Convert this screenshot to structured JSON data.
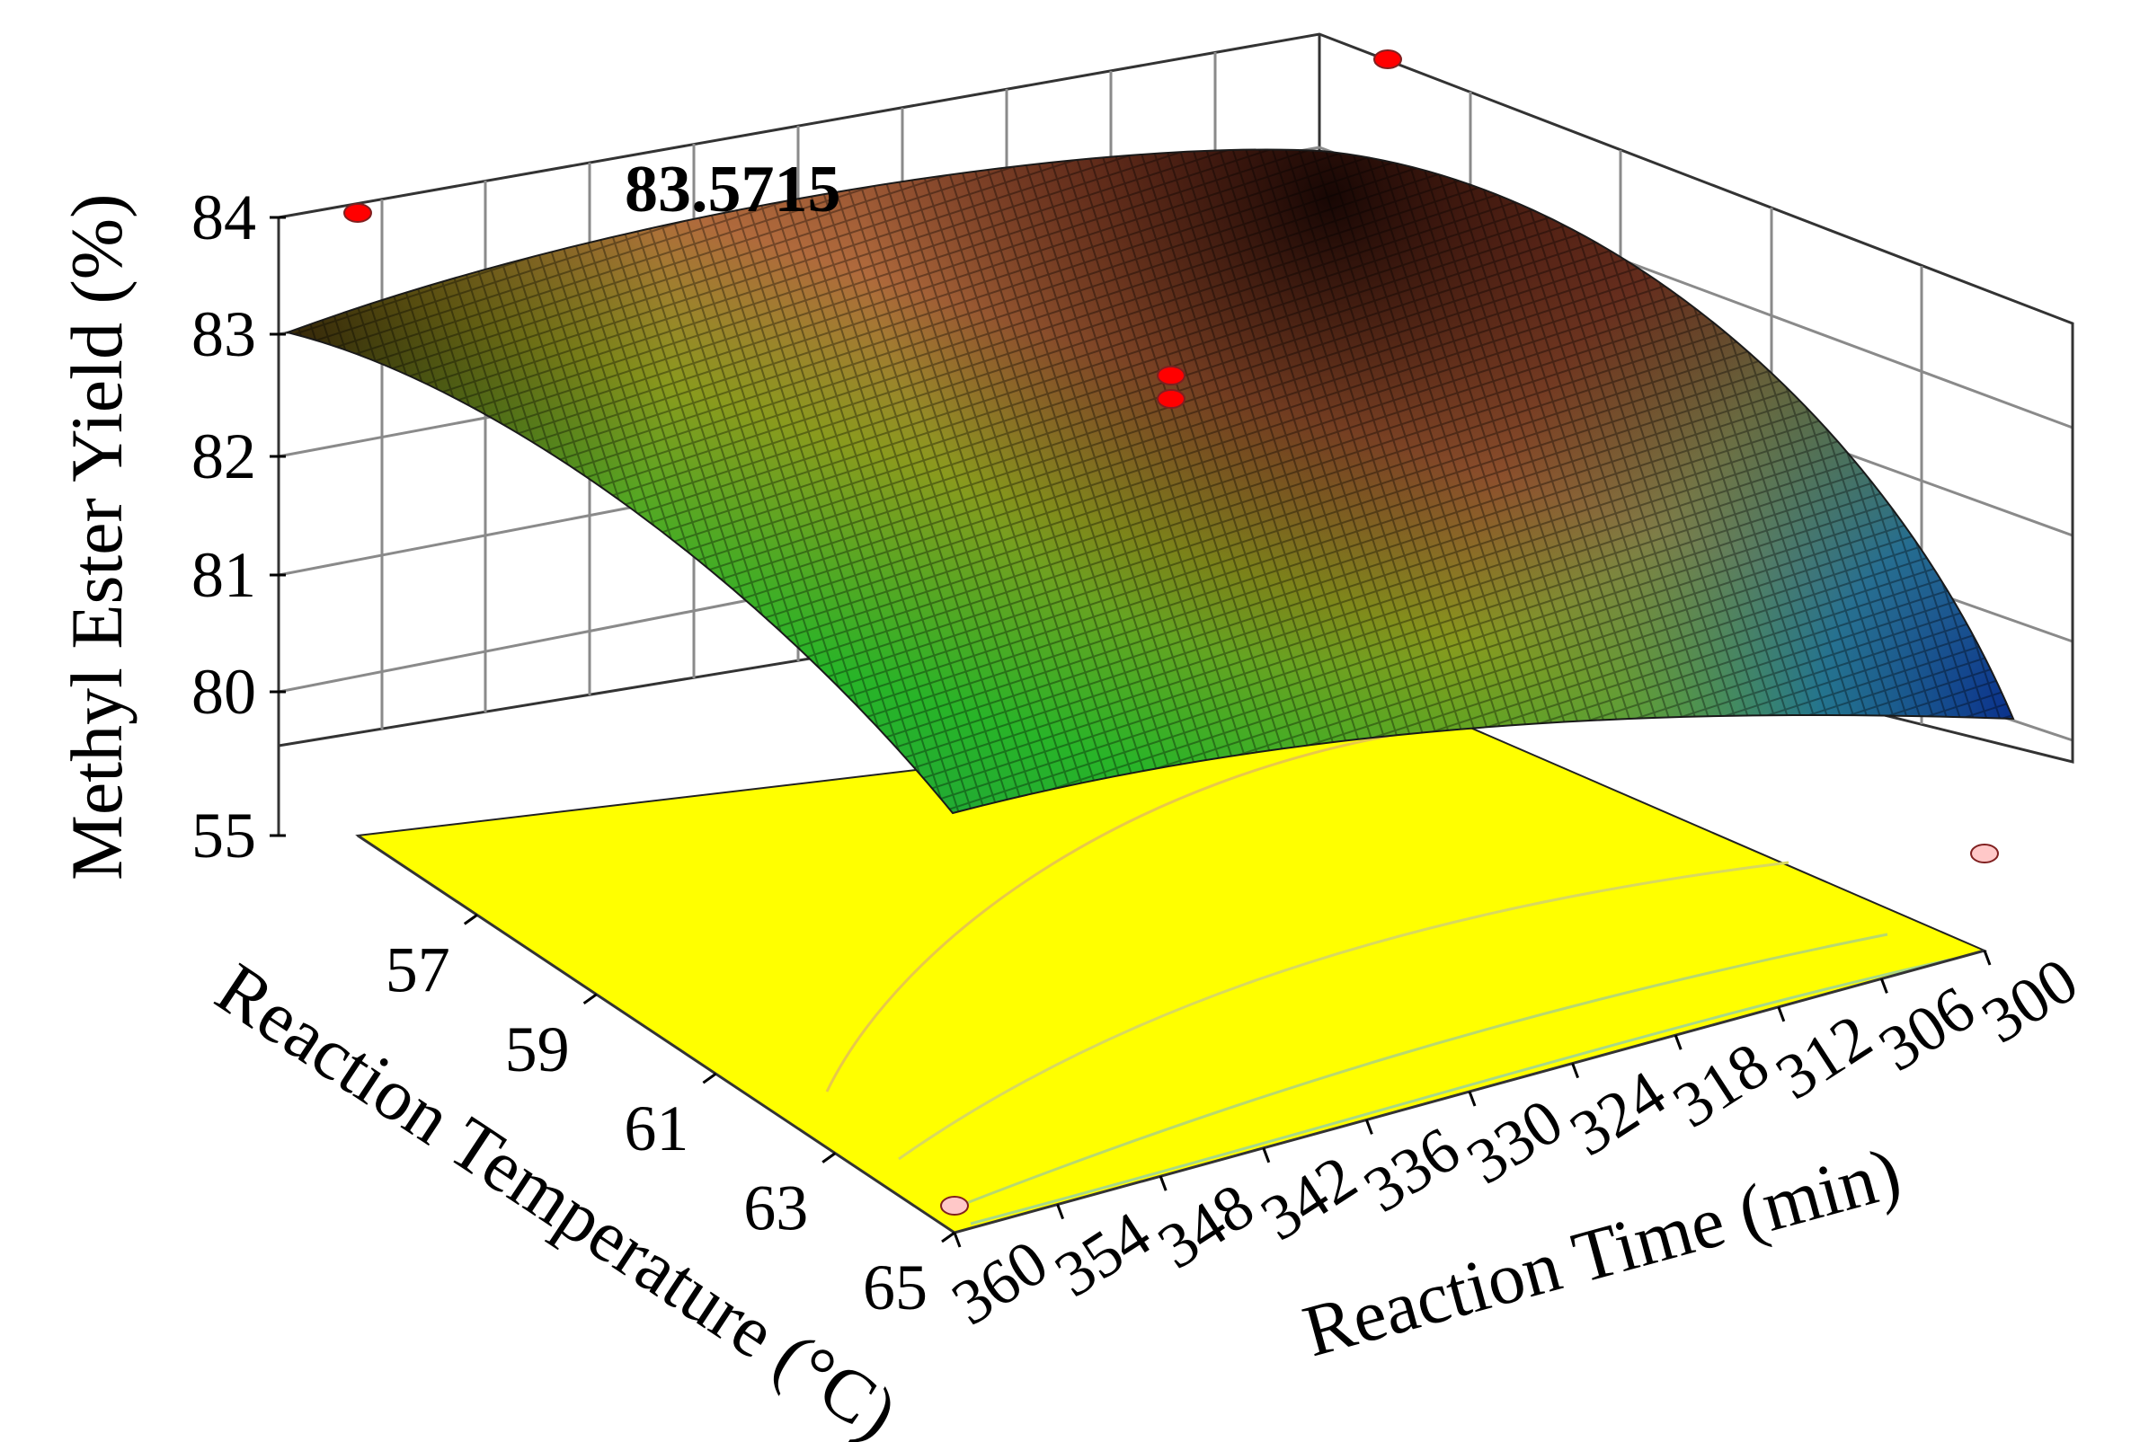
{
  "chart_data": {
    "type": "surface3d",
    "title": "",
    "zlabel": "Methyl Ester Yield (%)",
    "xlabel": "Reaction Temperature (°C)",
    "ylabel": "Reaction Time (min)",
    "temperature_ticks": [
      "57",
      "59",
      "61",
      "63",
      "65"
    ],
    "time_ticks": [
      "300",
      "306",
      "312",
      "318",
      "324",
      "330",
      "336",
      "342",
      "348",
      "354",
      "360"
    ],
    "yield_ticks": [
      "55",
      "80",
      "81",
      "82",
      "83",
      "84"
    ],
    "temperature_range": [
      55,
      65
    ],
    "time_range": [
      300,
      360
    ],
    "yield_range": [
      80,
      84
    ],
    "yield_floor_label": "55",
    "optimum_annotation": "83.5715",
    "surface_colors": {
      "high": "#3a1208",
      "upper": "#a0503a",
      "mid": "#8a9a1e",
      "low_mid": "#28b428",
      "low": "#0a2e8c"
    },
    "floor_color": "#ffff00",
    "surface_corners": [
      {
        "temperature": 55,
        "time": 300,
        "yield": 82.8
      },
      {
        "temperature": 55,
        "time": 360,
        "yield": 83.3
      },
      {
        "temperature": 65,
        "time": 360,
        "yield": 79.3
      },
      {
        "temperature": 65,
        "time": 300,
        "yield": 79.8
      }
    ],
    "design_points": [
      {
        "temperature": 55,
        "time": 300,
        "yield": 83.0,
        "color": "#ff0000",
        "position": "above-surface"
      },
      {
        "temperature": 55,
        "time": 360,
        "yield": 84.1,
        "color": "#ff0000",
        "position": "above-surface"
      },
      {
        "temperature": 60,
        "time": 330,
        "yield": 83.2,
        "color": "#ff0000",
        "position": "above-surface"
      },
      {
        "temperature": 60,
        "time": 330,
        "yield": 83.0,
        "color": "#ff0000",
        "position": "above-surface"
      },
      {
        "temperature": 65,
        "time": 360,
        "yield": 79.0,
        "color": "#ffc8c8",
        "position": "below-surface"
      },
      {
        "temperature": 65,
        "time": 300,
        "yield": 79.6,
        "color": "#ffc8c8",
        "position": "below-surface"
      }
    ]
  }
}
